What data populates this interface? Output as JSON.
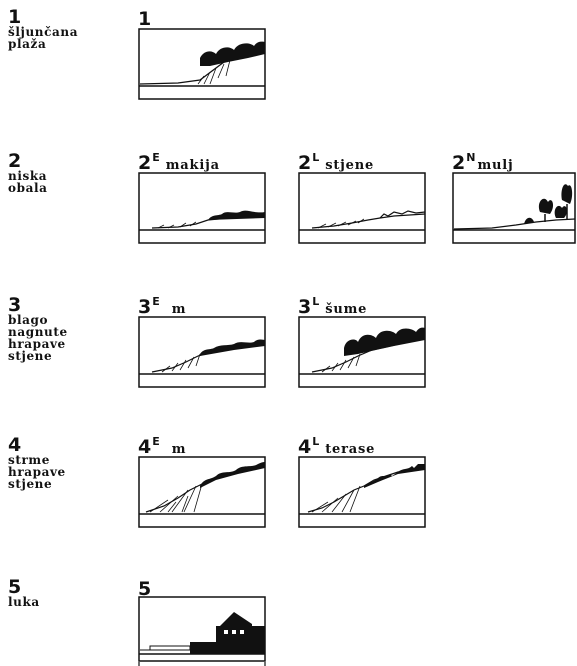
{
  "rows": [
    {
      "number": "1",
      "text": "šljunčana\nplaža",
      "panels": [
        {
          "num": "1",
          "sup": "",
          "word": ""
        }
      ]
    },
    {
      "number": "2",
      "text": "niska\nobala",
      "panels": [
        {
          "num": "2",
          "sup": "E",
          "word": "makija"
        },
        {
          "num": "2",
          "sup": "L",
          "word": "stjene"
        },
        {
          "num": "2",
          "sup": "N",
          "word": "mulj"
        }
      ]
    },
    {
      "number": "3",
      "text": "blago\nnagnute\nhrapave\nstjene",
      "panels": [
        {
          "num": "3",
          "sup": "E",
          "word": "m"
        },
        {
          "num": "3",
          "sup": "L",
          "word": "šume"
        }
      ]
    },
    {
      "number": "4",
      "text": "strme\nhrapave\nstjene",
      "panels": [
        {
          "num": "4",
          "sup": "E",
          "word": "m"
        },
        {
          "num": "4",
          "sup": "L",
          "word": "terase"
        }
      ]
    },
    {
      "number": "5",
      "text": "luka",
      "panels": [
        {
          "num": "5",
          "sup": "",
          "word": ""
        }
      ]
    }
  ]
}
